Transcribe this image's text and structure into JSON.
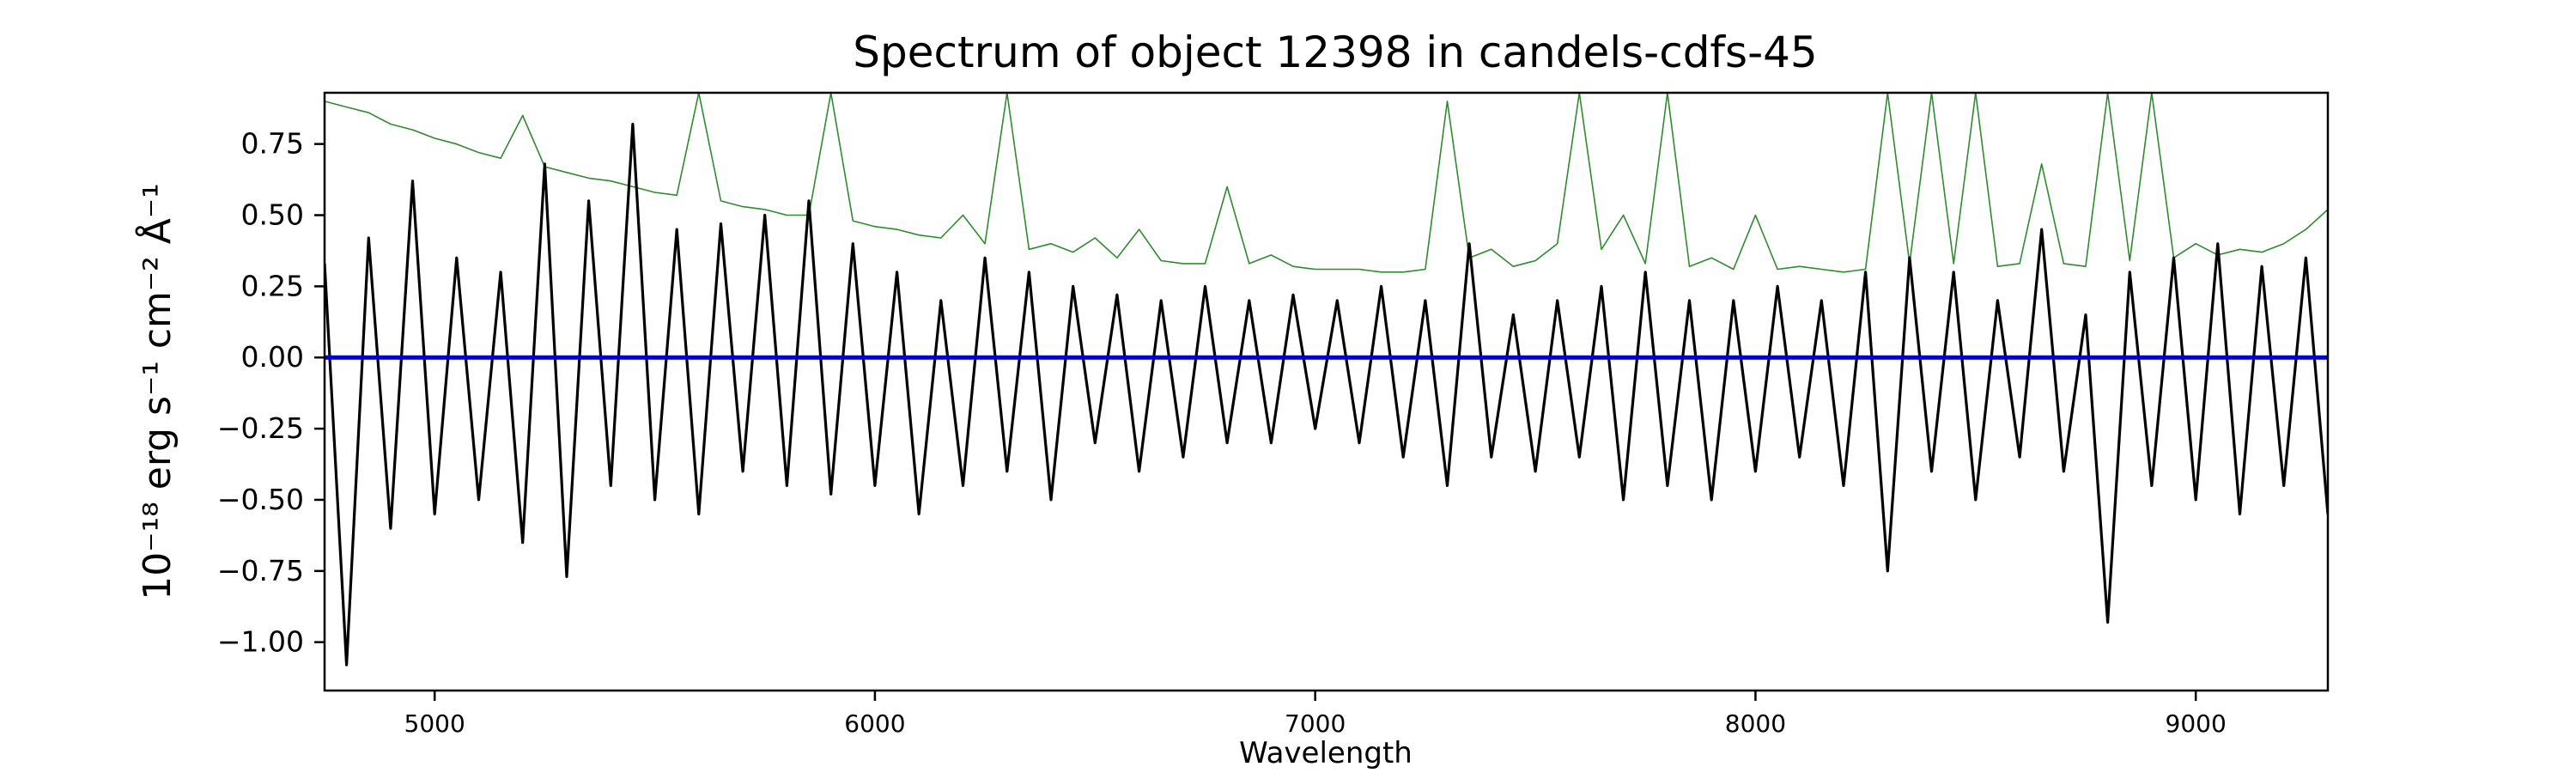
{
  "chart_data": {
    "type": "line",
    "title": "Spectrum of object 12398 in candels-cdfs-45",
    "xlabel": "Wavelength",
    "ylabel": "10⁻¹⁸ erg s⁻¹ cm⁻² Å⁻¹",
    "xlim": [
      4750,
      9300
    ],
    "ylim": [
      -1.17,
      0.93
    ],
    "x_ticks": [
      5000,
      6000,
      7000,
      8000,
      9000
    ],
    "y_ticks": [
      -1.0,
      -0.75,
      -0.5,
      -0.25,
      0.0,
      0.25,
      0.5,
      0.75
    ],
    "x_tick_labels": [
      "5000",
      "6000",
      "7000",
      "8000",
      "9000"
    ],
    "y_tick_labels": [
      "−1.00",
      "−0.75",
      "−0.50",
      "−0.25",
      "0.00",
      "0.25",
      "0.50",
      "0.75"
    ],
    "grid": false,
    "legend": "none",
    "colors": {
      "flux": "#000000",
      "error": "#2e8b2e",
      "zero": "#0000cc"
    },
    "series": [
      {
        "role": "flux",
        "x": [
          4750,
          4800,
          4850,
          4900,
          4950,
          5000,
          5050,
          5100,
          5150,
          5200,
          5250,
          5300,
          5350,
          5400,
          5450,
          5500,
          5550,
          5600,
          5650,
          5700,
          5750,
          5800,
          5850,
          5900,
          5950,
          6000,
          6050,
          6100,
          6150,
          6200,
          6250,
          6300,
          6350,
          6400,
          6450,
          6500,
          6550,
          6600,
          6650,
          6700,
          6750,
          6800,
          6850,
          6900,
          6950,
          7000,
          7050,
          7100,
          7150,
          7200,
          7250,
          7300,
          7350,
          7400,
          7450,
          7500,
          7550,
          7600,
          7650,
          7700,
          7750,
          7800,
          7850,
          7900,
          7950,
          8000,
          8050,
          8100,
          8150,
          8200,
          8250,
          8300,
          8350,
          8400,
          8450,
          8500,
          8550,
          8600,
          8650,
          8700,
          8750,
          8800,
          8850,
          8900,
          8950,
          9000,
          9050,
          9100,
          9150,
          9200,
          9250,
          9300
        ],
        "y": [
          0.33,
          -1.08,
          0.42,
          -0.6,
          0.62,
          -0.55,
          0.35,
          -0.5,
          0.3,
          -0.65,
          0.68,
          -0.77,
          0.55,
          -0.45,
          0.82,
          -0.5,
          0.45,
          -0.55,
          0.47,
          -0.4,
          0.5,
          -0.45,
          0.55,
          -0.48,
          0.4,
          -0.45,
          0.3,
          -0.55,
          0.2,
          -0.45,
          0.35,
          -0.4,
          0.3,
          -0.5,
          0.25,
          -0.3,
          0.22,
          -0.4,
          0.2,
          -0.35,
          0.25,
          -0.3,
          0.2,
          -0.3,
          0.22,
          -0.25,
          0.2,
          -0.3,
          0.25,
          -0.35,
          0.2,
          -0.45,
          0.4,
          -0.35,
          0.15,
          -0.4,
          0.2,
          -0.35,
          0.25,
          -0.5,
          0.3,
          -0.45,
          0.2,
          -0.5,
          0.2,
          -0.4,
          0.25,
          -0.35,
          0.2,
          -0.45,
          0.3,
          -0.75,
          0.35,
          -0.4,
          0.3,
          -0.5,
          0.2,
          -0.35,
          0.45,
          -0.4,
          0.15,
          -0.93,
          0.3,
          -0.45,
          0.35,
          -0.5,
          0.4,
          -0.55,
          0.32,
          -0.45,
          0.35,
          -0.55
        ]
      },
      {
        "role": "error",
        "x": [
          4750,
          4800,
          4850,
          4900,
          4950,
          5000,
          5050,
          5100,
          5150,
          5200,
          5250,
          5300,
          5350,
          5400,
          5450,
          5500,
          5550,
          5600,
          5650,
          5700,
          5750,
          5800,
          5850,
          5900,
          5950,
          6000,
          6050,
          6100,
          6150,
          6200,
          6250,
          6300,
          6350,
          6400,
          6450,
          6500,
          6550,
          6600,
          6650,
          6700,
          6750,
          6800,
          6850,
          6900,
          6950,
          7000,
          7050,
          7100,
          7150,
          7200,
          7250,
          7300,
          7350,
          7400,
          7450,
          7500,
          7550,
          7600,
          7650,
          7700,
          7750,
          7800,
          7850,
          7900,
          7950,
          8000,
          8050,
          8100,
          8150,
          8200,
          8250,
          8300,
          8350,
          8400,
          8450,
          8500,
          8550,
          8600,
          8650,
          8700,
          8750,
          8800,
          8850,
          8900,
          8950,
          9000,
          9050,
          9100,
          9150,
          9200,
          9250,
          9300
        ],
        "y": [
          0.9,
          0.88,
          0.86,
          0.82,
          0.8,
          0.77,
          0.75,
          0.72,
          0.7,
          0.85,
          0.67,
          0.65,
          0.63,
          0.62,
          0.6,
          0.58,
          0.57,
          0.93,
          0.55,
          0.53,
          0.52,
          0.5,
          0.5,
          0.93,
          0.48,
          0.46,
          0.45,
          0.43,
          0.42,
          0.5,
          0.4,
          0.93,
          0.38,
          0.4,
          0.37,
          0.42,
          0.35,
          0.45,
          0.34,
          0.33,
          0.33,
          0.6,
          0.33,
          0.36,
          0.32,
          0.31,
          0.31,
          0.31,
          0.3,
          0.3,
          0.31,
          0.9,
          0.35,
          0.38,
          0.32,
          0.34,
          0.4,
          0.93,
          0.38,
          0.5,
          0.33,
          0.93,
          0.32,
          0.35,
          0.31,
          0.5,
          0.31,
          0.32,
          0.31,
          0.3,
          0.31,
          0.93,
          0.33,
          0.93,
          0.33,
          0.93,
          0.32,
          0.33,
          0.68,
          0.33,
          0.32,
          0.93,
          0.34,
          0.93,
          0.35,
          0.4,
          0.36,
          0.38,
          0.37,
          0.4,
          0.45,
          0.52
        ]
      },
      {
        "role": "zero",
        "x": [
          4750,
          9300
        ],
        "y": [
          0.0,
          0.0
        ]
      }
    ]
  }
}
